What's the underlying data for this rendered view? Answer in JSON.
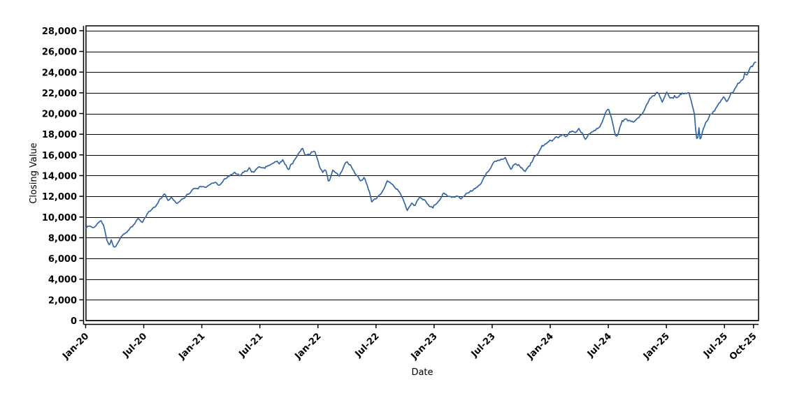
{
  "chart_data": {
    "type": "line",
    "title": "",
    "xlabel": "Date",
    "ylabel": "Closing Value",
    "legend": "none",
    "grid": "horizontal-solid-black",
    "background_color": "#ffffff",
    "line_color": "#3465a4",
    "axis_color": "#000000",
    "x_axis": {
      "unit": "months since Jan-2020",
      "tick_labels": [
        "Jan-20",
        "Jul-20",
        "Jan-21",
        "Jul-21",
        "Jan-22",
        "Jul-22",
        "Jan-23",
        "Jul-23",
        "Jan-24",
        "Jul-24",
        "Jan-25",
        "Jul-25",
        "Oct-25"
      ],
      "tick_month_index": [
        0,
        6,
        12,
        18,
        24,
        30,
        36,
        42,
        48,
        54,
        60,
        66,
        69
      ],
      "range_months": [
        0,
        69.45
      ]
    },
    "y_axis": {
      "tick_values": [
        0,
        2000,
        4000,
        6000,
        8000,
        10000,
        12000,
        14000,
        16000,
        18000,
        20000,
        22000,
        24000,
        26000,
        28000
      ],
      "tick_labels": [
        "0",
        "2,000",
        "4,000",
        "6,000",
        "8,000",
        "10,000",
        "12,000",
        "14,000",
        "16,000",
        "18,000",
        "20,000",
        "22,000",
        "24,000",
        "26,000",
        "28,000"
      ],
      "range": [
        0,
        28470
      ]
    },
    "series": [
      {
        "name": "Closing Value",
        "anchors_month_value": [
          [
            0.0,
            8900
          ],
          [
            0.4,
            9150
          ],
          [
            0.8,
            8950
          ],
          [
            1.3,
            9450
          ],
          [
            1.6,
            9650
          ],
          [
            1.9,
            9100
          ],
          [
            2.2,
            7700
          ],
          [
            2.45,
            7150
          ],
          [
            2.65,
            7700
          ],
          [
            2.9,
            7000
          ],
          [
            3.2,
            7350
          ],
          [
            3.6,
            8000
          ],
          [
            4.0,
            8350
          ],
          [
            4.5,
            8700
          ],
          [
            5.0,
            9300
          ],
          [
            5.4,
            9850
          ],
          [
            5.8,
            9400
          ],
          [
            6.3,
            10150
          ],
          [
            6.8,
            10650
          ],
          [
            7.3,
            11100
          ],
          [
            7.9,
            11900
          ],
          [
            8.2,
            12300
          ],
          [
            8.5,
            11450
          ],
          [
            8.9,
            11950
          ],
          [
            9.4,
            11350
          ],
          [
            9.9,
            11800
          ],
          [
            10.4,
            12150
          ],
          [
            11.0,
            12600
          ],
          [
            11.5,
            12850
          ],
          [
            12.0,
            13050
          ],
          [
            12.4,
            12650
          ],
          [
            12.9,
            13250
          ],
          [
            13.4,
            13550
          ],
          [
            13.9,
            13150
          ],
          [
            14.4,
            13700
          ],
          [
            14.9,
            14000
          ],
          [
            15.4,
            14200
          ],
          [
            15.9,
            13950
          ],
          [
            16.4,
            14350
          ],
          [
            16.9,
            14700
          ],
          [
            17.4,
            14450
          ],
          [
            18.0,
            14950
          ],
          [
            18.5,
            14750
          ],
          [
            19.0,
            15150
          ],
          [
            19.5,
            15400
          ],
          [
            20.0,
            15200
          ],
          [
            20.4,
            15550
          ],
          [
            20.9,
            14800
          ],
          [
            21.4,
            15350
          ],
          [
            22.0,
            16100
          ],
          [
            22.4,
            16550
          ],
          [
            22.7,
            15750
          ],
          [
            23.1,
            16150
          ],
          [
            23.65,
            16500
          ],
          [
            23.9,
            16000
          ],
          [
            24.2,
            14900
          ],
          [
            24.5,
            14300
          ],
          [
            24.8,
            14700
          ],
          [
            25.1,
            13450
          ],
          [
            25.5,
            14600
          ],
          [
            25.9,
            14100
          ],
          [
            26.2,
            13900
          ],
          [
            26.9,
            15300
          ],
          [
            27.4,
            15000
          ],
          [
            27.9,
            14200
          ],
          [
            28.4,
            13400
          ],
          [
            28.8,
            13800
          ],
          [
            29.2,
            12700
          ],
          [
            29.6,
            11500
          ],
          [
            29.9,
            11800
          ],
          [
            30.4,
            12100
          ],
          [
            31.2,
            13600
          ],
          [
            31.7,
            13200
          ],
          [
            32.2,
            12700
          ],
          [
            32.8,
            11900
          ],
          [
            33.2,
            10680
          ],
          [
            33.7,
            11300
          ],
          [
            34.0,
            11100
          ],
          [
            34.5,
            12050
          ],
          [
            35.0,
            11600
          ],
          [
            35.8,
            10930
          ],
          [
            36.4,
            11450
          ],
          [
            37.0,
            12380
          ],
          [
            37.7,
            11830
          ],
          [
            38.3,
            12050
          ],
          [
            38.9,
            11800
          ],
          [
            39.5,
            12300
          ],
          [
            40.1,
            12600
          ],
          [
            40.7,
            13100
          ],
          [
            41.3,
            14000
          ],
          [
            41.9,
            14900
          ],
          [
            42.4,
            15350
          ],
          [
            42.9,
            15650
          ],
          [
            43.4,
            15700
          ],
          [
            43.9,
            14750
          ],
          [
            44.4,
            15400
          ],
          [
            44.9,
            15050
          ],
          [
            45.45,
            14330
          ],
          [
            46.0,
            15300
          ],
          [
            46.5,
            16050
          ],
          [
            47.0,
            16600
          ],
          [
            47.5,
            17050
          ],
          [
            48.0,
            17300
          ],
          [
            48.4,
            17550
          ],
          [
            49.0,
            17900
          ],
          [
            49.4,
            18050
          ],
          [
            49.8,
            17850
          ],
          [
            50.2,
            18250
          ],
          [
            50.6,
            17950
          ],
          [
            51.0,
            18300
          ],
          [
            51.3,
            18050
          ],
          [
            51.6,
            17220
          ],
          [
            52.0,
            17900
          ],
          [
            52.5,
            18350
          ],
          [
            53.0,
            18600
          ],
          [
            53.4,
            19100
          ],
          [
            53.7,
            20100
          ],
          [
            54.0,
            20550
          ],
          [
            54.35,
            19400
          ],
          [
            54.7,
            18100
          ],
          [
            54.9,
            17900
          ],
          [
            55.4,
            19200
          ],
          [
            55.8,
            19500
          ],
          [
            56.2,
            19350
          ],
          [
            56.6,
            19100
          ],
          [
            57.0,
            19800
          ],
          [
            57.5,
            20200
          ],
          [
            58.1,
            20900
          ],
          [
            58.7,
            21750
          ],
          [
            59.1,
            21950
          ],
          [
            59.6,
            21150
          ],
          [
            60.0,
            21850
          ],
          [
            60.4,
            21550
          ],
          [
            60.8,
            21950
          ],
          [
            61.2,
            21600
          ],
          [
            61.7,
            22050
          ],
          [
            62.0,
            21850
          ],
          [
            62.3,
            22050
          ],
          [
            62.6,
            21200
          ],
          [
            62.9,
            20100
          ],
          [
            63.05,
            18400
          ],
          [
            63.2,
            17300
          ],
          [
            63.35,
            18800
          ],
          [
            63.5,
            17250
          ],
          [
            63.75,
            18400
          ],
          [
            64.1,
            19300
          ],
          [
            64.5,
            20000
          ],
          [
            65.0,
            20500
          ],
          [
            65.5,
            21050
          ],
          [
            65.9,
            21400
          ],
          [
            66.2,
            21150
          ],
          [
            66.6,
            21900
          ],
          [
            67.1,
            22400
          ],
          [
            67.5,
            22950
          ],
          [
            67.9,
            23350
          ],
          [
            68.1,
            23900
          ],
          [
            68.35,
            23500
          ],
          [
            68.65,
            24100
          ],
          [
            69.0,
            24550
          ],
          [
            69.15,
            25040
          ],
          [
            69.3,
            24600
          ]
        ]
      }
    ],
    "noise": {
      "seed": 11,
      "step_months": 0.115,
      "amplitude_base": 45,
      "amplitude_scale": 0.0045,
      "ar_decay": 0.78,
      "spike_prob": 0.035,
      "spike_factor": 1.3
    }
  }
}
